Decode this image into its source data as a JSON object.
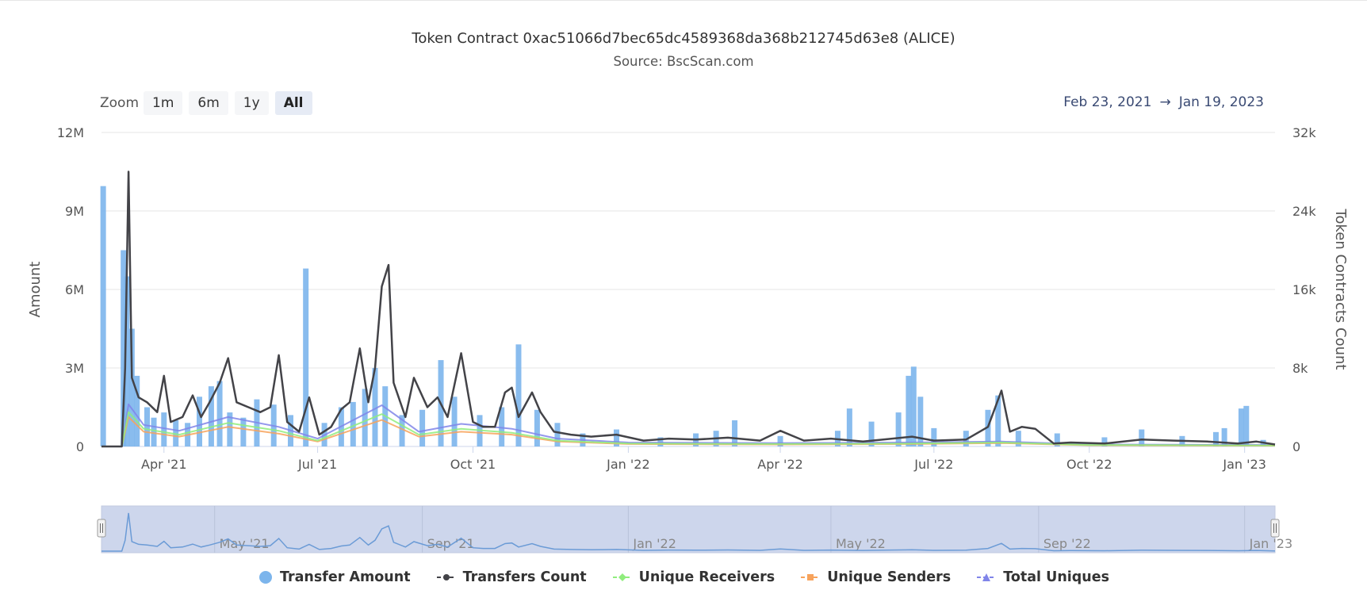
{
  "header": {
    "title": "Token Contract 0xac51066d7bec65dc4589368da368b212745d63e8 (ALICE)",
    "subtitle": "Source: BscScan.com"
  },
  "zoom": {
    "label": "Zoom",
    "buttons": [
      "1m",
      "6m",
      "1y",
      "All"
    ],
    "active": "All"
  },
  "range": {
    "from": "Feb 23, 2021",
    "arrow": "→",
    "to": "Jan 19, 2023"
  },
  "colors": {
    "transfer_amount": "#7cb5ec",
    "transfers_count": "#434348",
    "unique_receivers": "#90ed7d",
    "unique_senders": "#f7a35c",
    "total_uniques": "#8085e9",
    "navigator_fill": "#cdd6ec",
    "navigator_line": "#6b9bd6"
  },
  "chart_data": {
    "type": "bar",
    "x_axis": {
      "type": "datetime",
      "range": [
        "2021-02-23",
        "2023-01-19"
      ],
      "tick_labels": [
        "Apr '21",
        "Jul '21",
        "Oct '21",
        "Jan '22",
        "Apr '22",
        "Jul '22",
        "Oct '22",
        "Jan '23"
      ],
      "tick_dates": [
        "2021-04-01",
        "2021-07-01",
        "2021-10-01",
        "2022-01-01",
        "2022-04-01",
        "2022-07-01",
        "2022-10-01",
        "2023-01-01"
      ]
    },
    "y_axis_left": {
      "title": "Amount",
      "min": 0,
      "max": 12000000,
      "tick_labels": [
        "0",
        "3M",
        "6M",
        "9M",
        "12M"
      ],
      "ticks": [
        0,
        3000000,
        6000000,
        9000000,
        12000000
      ]
    },
    "y_axis_right": {
      "title": "Token Contracts Count",
      "min": 0,
      "max": 32000,
      "tick_labels": [
        "0",
        "8k",
        "16k",
        "24k",
        "32k"
      ],
      "ticks": [
        0,
        8000,
        16000,
        24000,
        32000
      ]
    },
    "grid": true,
    "legend_position": "bottom-center",
    "series": [
      {
        "name": "Transfer Amount",
        "kind": "column",
        "axis": "left",
        "points": [
          [
            "2021-02-24",
            9950000
          ],
          [
            "2021-03-08",
            7500000
          ],
          [
            "2021-03-10",
            6500000
          ],
          [
            "2021-03-13",
            4500000
          ],
          [
            "2021-03-16",
            2700000
          ],
          [
            "2021-03-22",
            1500000
          ],
          [
            "2021-03-26",
            1100000
          ],
          [
            "2021-04-01",
            1300000
          ],
          [
            "2021-04-08",
            1000000
          ],
          [
            "2021-04-15",
            900000
          ],
          [
            "2021-04-22",
            1900000
          ],
          [
            "2021-04-29",
            2300000
          ],
          [
            "2021-05-04",
            2500000
          ],
          [
            "2021-05-10",
            1300000
          ],
          [
            "2021-05-18",
            1100000
          ],
          [
            "2021-05-26",
            1800000
          ],
          [
            "2021-06-05",
            1600000
          ],
          [
            "2021-06-15",
            1200000
          ],
          [
            "2021-06-24",
            6800000
          ],
          [
            "2021-07-05",
            900000
          ],
          [
            "2021-07-15",
            1500000
          ],
          [
            "2021-07-22",
            1700000
          ],
          [
            "2021-07-29",
            2200000
          ],
          [
            "2021-08-04",
            3000000
          ],
          [
            "2021-08-10",
            2300000
          ],
          [
            "2021-08-20",
            1200000
          ],
          [
            "2021-09-01",
            1400000
          ],
          [
            "2021-09-12",
            3300000
          ],
          [
            "2021-09-20",
            1900000
          ],
          [
            "2021-10-05",
            1200000
          ],
          [
            "2021-10-18",
            1500000
          ],
          [
            "2021-10-28",
            3900000
          ],
          [
            "2021-11-08",
            1400000
          ],
          [
            "2021-11-20",
            900000
          ],
          [
            "2021-12-05",
            500000
          ],
          [
            "2021-12-25",
            650000
          ],
          [
            "2022-01-20",
            350000
          ],
          [
            "2022-02-10",
            500000
          ],
          [
            "2022-02-22",
            600000
          ],
          [
            "2022-03-05",
            1000000
          ],
          [
            "2022-04-01",
            400000
          ],
          [
            "2022-05-05",
            600000
          ],
          [
            "2022-05-12",
            1450000
          ],
          [
            "2022-05-25",
            950000
          ],
          [
            "2022-06-10",
            1300000
          ],
          [
            "2022-06-16",
            2700000
          ],
          [
            "2022-06-19",
            3050000
          ],
          [
            "2022-06-23",
            1900000
          ],
          [
            "2022-07-01",
            700000
          ],
          [
            "2022-07-20",
            600000
          ],
          [
            "2022-08-02",
            1400000
          ],
          [
            "2022-08-08",
            1950000
          ],
          [
            "2022-08-20",
            600000
          ],
          [
            "2022-09-12",
            500000
          ],
          [
            "2022-10-10",
            350000
          ],
          [
            "2022-11-01",
            650000
          ],
          [
            "2022-11-25",
            400000
          ],
          [
            "2022-12-15",
            550000
          ],
          [
            "2022-12-20",
            700000
          ],
          [
            "2022-12-30",
            1450000
          ],
          [
            "2023-01-02",
            1550000
          ],
          [
            "2023-01-12",
            250000
          ]
        ]
      },
      {
        "name": "Transfers Count",
        "kind": "line",
        "axis": "right",
        "points": [
          [
            "2021-02-23",
            0
          ],
          [
            "2021-03-07",
            0
          ],
          [
            "2021-03-09",
            8000
          ],
          [
            "2021-03-11",
            28000
          ],
          [
            "2021-03-13",
            7000
          ],
          [
            "2021-03-17",
            5000
          ],
          [
            "2021-03-22",
            4500
          ],
          [
            "2021-03-28",
            3500
          ],
          [
            "2021-04-01",
            7200
          ],
          [
            "2021-04-05",
            2500
          ],
          [
            "2021-04-12",
            3000
          ],
          [
            "2021-04-18",
            5200
          ],
          [
            "2021-04-23",
            3000
          ],
          [
            "2021-04-28",
            4500
          ],
          [
            "2021-05-04",
            6500
          ],
          [
            "2021-05-09",
            9000
          ],
          [
            "2021-05-14",
            4500
          ],
          [
            "2021-05-21",
            4000
          ],
          [
            "2021-05-28",
            3500
          ],
          [
            "2021-06-03",
            4000
          ],
          [
            "2021-06-08",
            9300
          ],
          [
            "2021-06-13",
            2500
          ],
          [
            "2021-06-20",
            1500
          ],
          [
            "2021-06-26",
            5000
          ],
          [
            "2021-07-02",
            1200
          ],
          [
            "2021-07-09",
            2000
          ],
          [
            "2021-07-15",
            3800
          ],
          [
            "2021-07-20",
            4500
          ],
          [
            "2021-07-26",
            10000
          ],
          [
            "2021-07-31",
            4500
          ],
          [
            "2021-08-04",
            8000
          ],
          [
            "2021-08-08",
            16300
          ],
          [
            "2021-08-12",
            18500
          ],
          [
            "2021-08-15",
            6500
          ],
          [
            "2021-08-22",
            3000
          ],
          [
            "2021-08-27",
            7000
          ],
          [
            "2021-09-04",
            4000
          ],
          [
            "2021-09-10",
            5000
          ],
          [
            "2021-09-16",
            3000
          ],
          [
            "2021-09-24",
            9500
          ],
          [
            "2021-10-01",
            2500
          ],
          [
            "2021-10-07",
            2000
          ],
          [
            "2021-10-14",
            2000
          ],
          [
            "2021-10-20",
            5500
          ],
          [
            "2021-10-24",
            6000
          ],
          [
            "2021-10-28",
            3000
          ],
          [
            "2021-11-05",
            5500
          ],
          [
            "2021-11-10",
            3500
          ],
          [
            "2021-11-18",
            1500
          ],
          [
            "2021-11-28",
            1200
          ],
          [
            "2021-12-10",
            1000
          ],
          [
            "2021-12-25",
            1200
          ],
          [
            "2022-01-10",
            600
          ],
          [
            "2022-01-25",
            800
          ],
          [
            "2022-02-10",
            700
          ],
          [
            "2022-03-01",
            900
          ],
          [
            "2022-03-20",
            600
          ],
          [
            "2022-04-01",
            1600
          ],
          [
            "2022-04-15",
            600
          ],
          [
            "2022-05-01",
            800
          ],
          [
            "2022-05-20",
            500
          ],
          [
            "2022-06-01",
            700
          ],
          [
            "2022-06-18",
            1000
          ],
          [
            "2022-07-01",
            600
          ],
          [
            "2022-07-20",
            700
          ],
          [
            "2022-08-02",
            2000
          ],
          [
            "2022-08-10",
            5700
          ],
          [
            "2022-08-15",
            1500
          ],
          [
            "2022-08-22",
            2000
          ],
          [
            "2022-08-30",
            1800
          ],
          [
            "2022-09-10",
            300
          ],
          [
            "2022-09-20",
            400
          ],
          [
            "2022-10-10",
            300
          ],
          [
            "2022-11-01",
            700
          ],
          [
            "2022-11-20",
            600
          ],
          [
            "2022-12-10",
            500
          ],
          [
            "2022-12-28",
            300
          ],
          [
            "2023-01-08",
            500
          ],
          [
            "2023-01-19",
            200
          ]
        ]
      },
      {
        "name": "Unique Receivers",
        "kind": "line",
        "axis": "right",
        "points": [
          [
            "2021-02-23",
            0
          ],
          [
            "2021-03-07",
            0
          ],
          [
            "2021-03-11",
            3500
          ],
          [
            "2021-03-20",
            1800
          ],
          [
            "2021-04-10",
            1200
          ],
          [
            "2021-05-09",
            2400
          ],
          [
            "2021-06-08",
            1600
          ],
          [
            "2021-07-01",
            600
          ],
          [
            "2021-08-08",
            3300
          ],
          [
            "2021-08-30",
            1200
          ],
          [
            "2021-09-24",
            1800
          ],
          [
            "2021-10-24",
            1400
          ],
          [
            "2021-11-20",
            600
          ],
          [
            "2022-01-01",
            300
          ],
          [
            "2022-04-01",
            250
          ],
          [
            "2022-06-18",
            300
          ],
          [
            "2022-08-10",
            400
          ],
          [
            "2022-10-01",
            150
          ],
          [
            "2023-01-19",
            100
          ]
        ]
      },
      {
        "name": "Unique Senders",
        "kind": "line",
        "axis": "right",
        "points": [
          [
            "2021-02-23",
            0
          ],
          [
            "2021-03-07",
            0
          ],
          [
            "2021-03-11",
            3000
          ],
          [
            "2021-03-20",
            1500
          ],
          [
            "2021-04-10",
            1000
          ],
          [
            "2021-05-09",
            2000
          ],
          [
            "2021-06-08",
            1300
          ],
          [
            "2021-07-01",
            500
          ],
          [
            "2021-08-08",
            2700
          ],
          [
            "2021-08-30",
            1000
          ],
          [
            "2021-09-24",
            1500
          ],
          [
            "2021-10-24",
            1200
          ],
          [
            "2021-11-20",
            500
          ],
          [
            "2022-01-01",
            250
          ],
          [
            "2022-04-01",
            200
          ],
          [
            "2022-06-18",
            250
          ],
          [
            "2022-08-10",
            350
          ],
          [
            "2022-10-01",
            120
          ],
          [
            "2023-01-19",
            80
          ]
        ]
      },
      {
        "name": "Total Uniques",
        "kind": "line",
        "axis": "right",
        "points": [
          [
            "2021-02-23",
            0
          ],
          [
            "2021-03-07",
            0
          ],
          [
            "2021-03-11",
            4300
          ],
          [
            "2021-03-20",
            2200
          ],
          [
            "2021-04-10",
            1600
          ],
          [
            "2021-05-09",
            3000
          ],
          [
            "2021-06-08",
            2000
          ],
          [
            "2021-07-01",
            800
          ],
          [
            "2021-08-08",
            4200
          ],
          [
            "2021-08-30",
            1500
          ],
          [
            "2021-09-24",
            2300
          ],
          [
            "2021-10-24",
            1800
          ],
          [
            "2021-11-20",
            800
          ],
          [
            "2022-01-01",
            400
          ],
          [
            "2022-04-01",
            350
          ],
          [
            "2022-06-18",
            400
          ],
          [
            "2022-08-10",
            500
          ],
          [
            "2022-10-01",
            200
          ],
          [
            "2023-01-19",
            150
          ]
        ]
      }
    ],
    "navigator": {
      "tick_labels": [
        "May '21",
        "Sep '21",
        "Jan '22",
        "May '22",
        "Sep '22",
        "Jan '23"
      ],
      "tick_dates": [
        "2021-05-01",
        "2021-09-01",
        "2022-01-01",
        "2022-05-01",
        "2022-09-01",
        "2023-01-01"
      ]
    }
  }
}
